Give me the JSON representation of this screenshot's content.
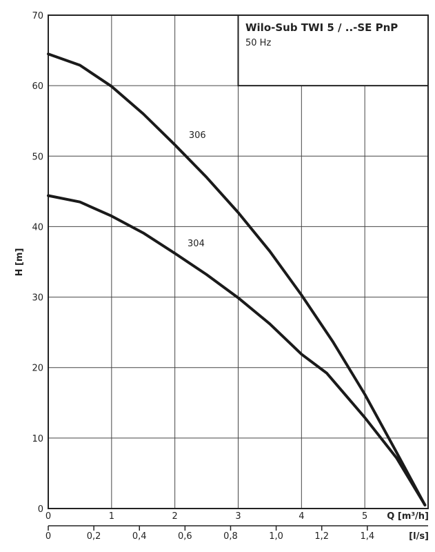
{
  "chart_data": {
    "type": "line",
    "title": "Wilo-Sub TWI 5 / ..-SE PnP",
    "subtitle": "50 Hz",
    "ylabel": "H [m]",
    "xlabel": "Q [m³/h]",
    "x2label": "[l/s]",
    "xlim": [
      0,
      6
    ],
    "ylim": [
      0,
      70
    ],
    "grid": true,
    "xticks": [
      "0",
      "1",
      "2",
      "3",
      "4",
      "5"
    ],
    "yticks": [
      "0",
      "10",
      "20",
      "30",
      "40",
      "50",
      "60",
      "70"
    ],
    "x2ticks": [
      "0",
      "0,2",
      "0,4",
      "0,6",
      "0,8",
      "1,0",
      "1,2",
      "1,4"
    ],
    "series": [
      {
        "name": "306",
        "x": [
          0,
          0.5,
          1,
          1.5,
          2,
          2.5,
          3,
          3.5,
          4,
          4.5,
          5,
          5.5,
          5.95
        ],
        "y": [
          64.5,
          62.9,
          59.9,
          56.0,
          51.6,
          47.0,
          42.0,
          36.5,
          30.3,
          23.6,
          16.2,
          8.0,
          0.5
        ]
      },
      {
        "name": "304",
        "x": [
          0,
          0.5,
          1,
          1.5,
          2,
          2.5,
          3,
          3.5,
          4,
          4.4,
          5,
          5.5,
          5.95
        ],
        "y": [
          44.4,
          43.5,
          41.5,
          39.1,
          36.2,
          33.2,
          29.9,
          26.2,
          21.9,
          19.2,
          12.9,
          7.2,
          0.5
        ]
      }
    ]
  }
}
